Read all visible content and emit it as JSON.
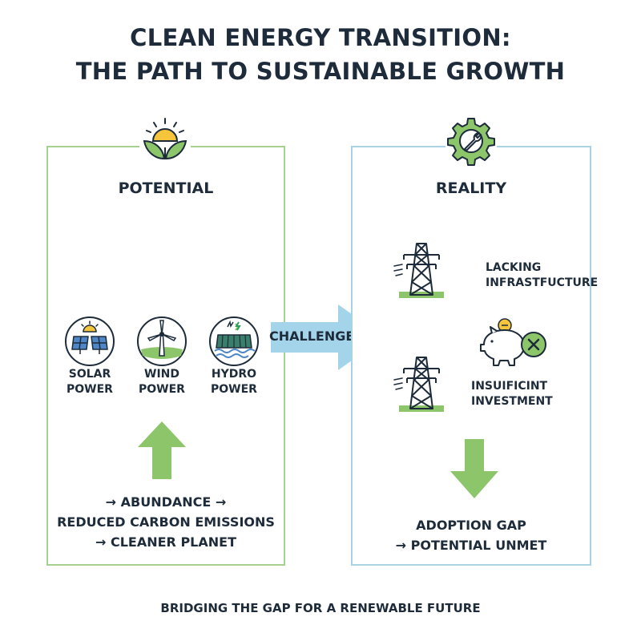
{
  "title": {
    "line1": "CLEAN ENERGY TRANSITION:",
    "line2": "THE PATH TO SUSTAINABLE GROWTH"
  },
  "colors": {
    "green_accent": "#8cc56a",
    "blue_accent": "#9dd0e8",
    "dark_text": "#1d2b3a"
  },
  "potential": {
    "heading": "POTENTIAL",
    "icon": "sun-leaf-icon",
    "sources": [
      {
        "label_line1": "SOLAR",
        "label_line2": "POWER",
        "icon": "solar-panel-icon"
      },
      {
        "label_line1": "WIND",
        "label_line2": "POWER",
        "icon": "wind-turbine-icon"
      },
      {
        "label_line1": "HYDRO",
        "label_line2": "POWER",
        "icon": "hydro-dam-icon"
      }
    ],
    "arrow": "up-arrow",
    "outcomes": {
      "line1": "→ ABUNDANCE →",
      "line2": "REDUCED CARBON EMISSIONS",
      "line3": "→ CLEANER PLANET"
    }
  },
  "connector": {
    "label": "CHALLENGES",
    "icon": "right-arrow"
  },
  "reality": {
    "heading": "REALITY",
    "icon": "gear-wrench-icon",
    "items": [
      {
        "line1": "LACKING",
        "line2": "INFRASTFUCTURE",
        "icon": "power-tower-icon"
      },
      {
        "line1": "INSUIFICINT",
        "line2": "INVESTMENT",
        "icon": "piggy-bank-x-icon"
      }
    ],
    "arrow": "down-arrow",
    "outcomes": {
      "line1": "ADOPTION GAP",
      "line2": "→ POTENTIAL UNMET"
    }
  },
  "footer": "BRIDGING THE GAP FOR A RENEWABLE FUTURE"
}
